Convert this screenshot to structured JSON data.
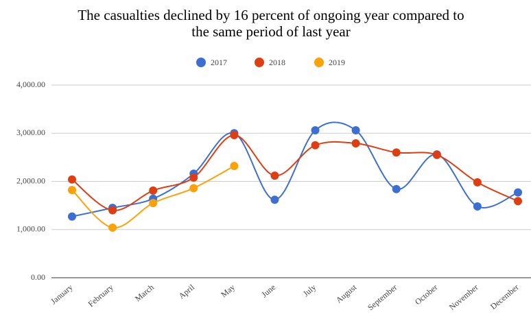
{
  "chart_data": {
    "type": "line",
    "title": "The casualties declined by 16 percent of ongoing year compared to the same period of last year",
    "categories": [
      "January",
      "February",
      "March",
      "April",
      "May",
      "June",
      "July",
      "August",
      "September",
      "October",
      "November",
      "December"
    ],
    "series": [
      {
        "name": "2017",
        "color": "#3c6fd1",
        "values": [
          1270,
          1450,
          1640,
          2160,
          3000,
          1620,
          3060,
          3060,
          1840,
          2560,
          1480,
          1770
        ]
      },
      {
        "name": "2018",
        "color": "#dd3e12",
        "values": [
          2040,
          1400,
          1810,
          2080,
          2960,
          2120,
          2750,
          2790,
          2600,
          2550,
          1980,
          1590
        ]
      },
      {
        "name": "2019",
        "color": "#fba20a",
        "values": [
          1820,
          1040,
          1550,
          1860,
          2320,
          null,
          null,
          null,
          null,
          null,
          null,
          null
        ]
      }
    ],
    "ylim": [
      0,
      4000
    ],
    "yticks": [
      {
        "value": 0,
        "label": "0.00"
      },
      {
        "value": 1000,
        "label": "1,000.00"
      },
      {
        "value": 2000,
        "label": "2,000.00"
      },
      {
        "value": 3000,
        "label": "3,000.00"
      },
      {
        "value": 4000,
        "label": "4,000.00"
      }
    ],
    "grid": true,
    "smooth": true,
    "legend": "top"
  }
}
